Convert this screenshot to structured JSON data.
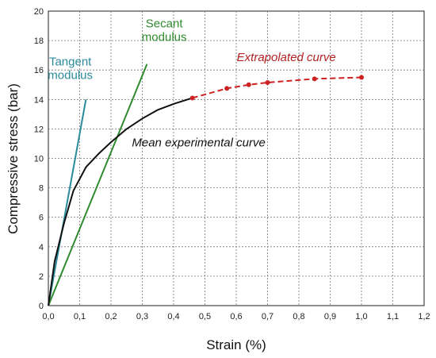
{
  "chart_data": {
    "type": "line",
    "title": "",
    "xlabel": "Strain  (%)",
    "ylabel": "Compressive stress  (bar)",
    "xlim": [
      0,
      1.2
    ],
    "ylim": [
      0,
      20
    ],
    "xticks": [
      0,
      0.1,
      0.2,
      0.3,
      0.4,
      0.5,
      0.6,
      0.7,
      0.8,
      0.9,
      1.0,
      1.1,
      1.2
    ],
    "xtick_labels": [
      "0,0",
      "0,1",
      "0,2",
      "0,3",
      "0,4",
      "0,5",
      "0,6",
      "0,7",
      "0,8",
      "0,9",
      "1,0",
      "1,1",
      "1,2"
    ],
    "yticks": [
      0,
      2,
      4,
      6,
      8,
      10,
      12,
      14,
      16,
      18,
      20
    ],
    "ytick_labels": [
      "0",
      "2",
      "4",
      "6",
      "8",
      "10",
      "12",
      "14",
      "16",
      "18",
      "20"
    ],
    "grid": true,
    "grid_style": "dashed",
    "legend": "none",
    "series": [
      {
        "key": "tangent",
        "color": "#2a8a9a",
        "x": [
          0,
          0.12
        ],
        "y": [
          0,
          14.0
        ]
      },
      {
        "key": "secant",
        "color": "#2e8b2e",
        "x": [
          0,
          0.315
        ],
        "y": [
          0,
          16.4
        ]
      },
      {
        "key": "mean",
        "color": "#111111",
        "x": [
          0,
          0.02,
          0.05,
          0.08,
          0.12,
          0.16,
          0.2,
          0.25,
          0.3,
          0.35,
          0.4,
          0.46
        ],
        "y": [
          0,
          3.0,
          5.6,
          7.8,
          9.4,
          10.3,
          11.1,
          12.0,
          12.7,
          13.3,
          13.7,
          14.1
        ]
      },
      {
        "key": "extrapolated",
        "color": "#cc2222",
        "dashed": true,
        "markers": true,
        "x": [
          0.46,
          0.57,
          0.64,
          0.7,
          0.85,
          1.0
        ],
        "y": [
          14.1,
          14.75,
          15.0,
          15.15,
          15.4,
          15.5
        ]
      }
    ],
    "annotations": [
      {
        "key": "tangent_label",
        "lines": [
          "Tangent",
          "modulus"
        ],
        "color": "#2a8a9a",
        "italic": false,
        "at_x": 0.07,
        "at_y": 16.3
      },
      {
        "key": "secant_label",
        "lines": [
          "Secant",
          "modulus"
        ],
        "color": "#2e8b2e",
        "italic": false,
        "at_x": 0.37,
        "at_y": 18.9
      },
      {
        "key": "extrapolated_label",
        "lines": [
          "Extrapolated curve"
        ],
        "color": "#b22222",
        "italic": true,
        "at_x": 0.76,
        "at_y": 16.6
      },
      {
        "key": "mean_label",
        "lines": [
          "Mean experimental curve"
        ],
        "color": "#111111",
        "italic": true,
        "at_x": 0.48,
        "at_y": 10.8
      }
    ]
  }
}
